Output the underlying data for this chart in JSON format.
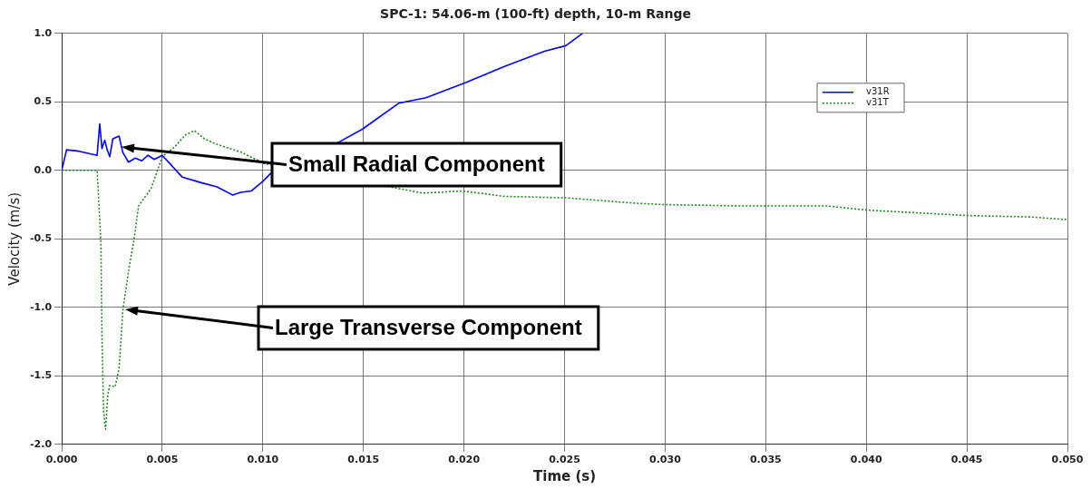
{
  "chart_data": {
    "type": "line",
    "title": "SPC-1: 54.06-m (100-ft) depth, 10-m Range",
    "xlabel": "Time (s)",
    "ylabel": "Velocity (m/s)",
    "xlim": [
      0,
      0.05
    ],
    "xticks": [
      {
        "value": 0,
        "label": "0.000"
      },
      {
        "value": 0.005,
        "label": "0.005"
      },
      {
        "value": 0.01,
        "label": "0.010"
      },
      {
        "value": 0.015,
        "label": "0.015"
      },
      {
        "value": 0.02,
        "label": "0.020"
      },
      {
        "value": 0.025,
        "label": "0.025"
      },
      {
        "value": 0.03,
        "label": "0.030"
      },
      {
        "value": 0.035,
        "label": "0.035"
      },
      {
        "value": 0.04,
        "label": "0.040"
      },
      {
        "value": 0.045,
        "label": "0.045"
      },
      {
        "value": 0.05,
        "label": "0.050"
      }
    ],
    "ylim": [
      -2,
      1
    ],
    "yticks": [
      {
        "value": -2,
        "label": "-2.0"
      },
      {
        "value": -1.5,
        "label": "-1.5"
      },
      {
        "value": -1,
        "label": "-1.0"
      },
      {
        "value": -0.5,
        "label": "-0.5"
      },
      {
        "value": 0,
        "label": "0.0"
      },
      {
        "value": 0.5,
        "label": "0.5"
      },
      {
        "value": 1,
        "label": "1.0"
      }
    ],
    "grid": true,
    "legend": "top right",
    "marker": "none",
    "series": [
      {
        "name": "v31R",
        "color": "#0000ff",
        "line_style": "solid",
        "x": [
          0,
          0.00024,
          0.00086,
          0.00176,
          0.00189,
          0.002,
          0.00214,
          0.00226,
          0.00239,
          0.00254,
          0.00285,
          0.00304,
          0.00332,
          0.00366,
          0.00398,
          0.00429,
          0.0046,
          0.005,
          0.006,
          0.00694,
          0.00772,
          0.0085,
          0.0089,
          0.00943,
          0.01,
          0.0104,
          0.0137,
          0.01494,
          0.01675,
          0.01811,
          0.02006,
          0.02204,
          0.024,
          0.02506,
          0.02589
        ],
        "values": [
          0,
          0.15,
          0.14,
          0.11,
          0.34,
          0.16,
          0.22,
          0.15,
          0.1,
          0.23,
          0.25,
          0.13,
          0.06,
          0.09,
          0.07,
          0.11,
          0.08,
          0.11,
          -0.05,
          -0.09,
          -0.12,
          -0.18,
          -0.16,
          -0.15,
          -0.08,
          -0.02,
          0.2,
          0.3,
          0.49,
          0.53,
          0.64,
          0.76,
          0.87,
          0.91,
          1.0
        ]
      },
      {
        "name": "v31T",
        "color": "#228b22",
        "line_style": "dotted",
        "x": [
          0,
          0.00176,
          0.00183,
          0.00195,
          0.002,
          0.00208,
          0.00218,
          0.00229,
          0.00239,
          0.00265,
          0.00285,
          0.00304,
          0.00335,
          0.00359,
          0.00382,
          0.00445,
          0.005,
          0.00561,
          0.00616,
          0.0066,
          0.0071,
          0.00772,
          0.00897,
          0.01006,
          0.01796,
          0.01992,
          0.02204,
          0.02506,
          0.02854,
          0.03005,
          0.03398,
          0.03805,
          0.04002,
          0.04508,
          0.04818,
          0.05
        ],
        "values": [
          0,
          0,
          -0.19,
          -0.53,
          -1.2,
          -1.76,
          -1.89,
          -1.64,
          -1.57,
          -1.58,
          -1.45,
          -1.02,
          -0.71,
          -0.51,
          -0.26,
          -0.13,
          0.1,
          0.17,
          0.26,
          0.29,
          0.23,
          0.19,
          0.13,
          0.05,
          -0.166,
          -0.15,
          -0.19,
          -0.2,
          -0.24,
          -0.25,
          -0.26,
          -0.26,
          -0.29,
          -0.33,
          -0.34,
          -0.36
        ]
      }
    ],
    "annotations": [
      "Small Radial Component",
      "Large Transverse Component"
    ]
  }
}
